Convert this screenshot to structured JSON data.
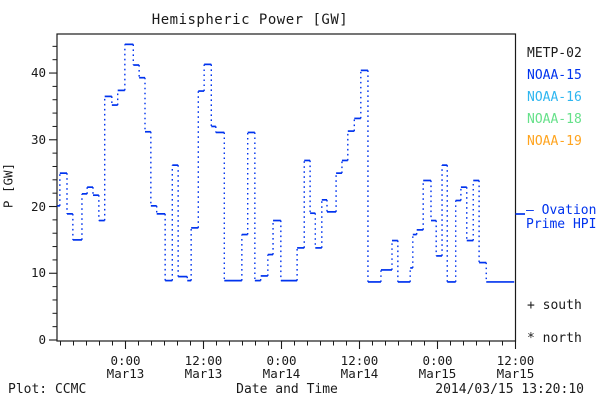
{
  "title": "Hemispheric Power [GW]",
  "axes": {
    "ylabel": "P [GW]",
    "xlabel": "Date and Time",
    "y_ticks": [
      0,
      10,
      20,
      30,
      40
    ],
    "y_minor_step": 2,
    "ylim": [
      0,
      46
    ],
    "x_major_ticks": [
      {
        "t": 0,
        "time": "0:00",
        "date": "Mar13"
      },
      {
        "t": 12,
        "time": "12:00",
        "date": "Mar13"
      },
      {
        "t": 24,
        "time": "0:00",
        "date": "Mar14"
      },
      {
        "t": 36,
        "time": "12:00",
        "date": "Mar14"
      },
      {
        "t": 48,
        "time": "0:00",
        "date": "Mar15"
      },
      {
        "t": 60,
        "time": "12:00",
        "date": "Mar15"
      }
    ],
    "x_minor_step_hours": 2,
    "xlim_hours": [
      -10.5,
      59.8
    ]
  },
  "legend": {
    "satellites": [
      {
        "label": "METP-02",
        "color": "#1a1a1a"
      },
      {
        "label": "NOAA-15",
        "color": "#0033ee"
      },
      {
        "label": "NOAA-16",
        "color": "#2eb6f0"
      },
      {
        "label": "NOAA-18",
        "color": "#66e18a"
      },
      {
        "label": "NOAA-19",
        "color": "#ffa41f"
      }
    ],
    "model_line_label_1": "— Ovation",
    "model_line_label_2": "Prime HPI",
    "model_color": "#0033ee",
    "south_marker": "+ south",
    "north_marker": "* north"
  },
  "footer": {
    "left": "Plot: CCMC",
    "right": "2014/03/15 13:20:10"
  },
  "chart_data": {
    "type": "line",
    "style": "step",
    "title": "Hemispheric Power [GW]",
    "xlabel": "Date and Time",
    "ylabel": "P [GW]",
    "ylim": [
      0,
      46
    ],
    "grid": false,
    "legend_position": "right-outside",
    "series_name": "Ovation Prime HPI (NOAA-15)",
    "units": "GW",
    "x_unit": "hours since 2014-03-13 00:00 UT",
    "line_color": "#0033ee",
    "x_end": 59.8,
    "steps": [
      [
        -10.5,
        20.1
      ],
      [
        -10.1,
        25.0
      ],
      [
        -9.0,
        18.9
      ],
      [
        -8.1,
        15.0
      ],
      [
        -6.7,
        21.9
      ],
      [
        -5.9,
        22.9
      ],
      [
        -5.0,
        21.7
      ],
      [
        -4.1,
        17.9
      ],
      [
        -3.2,
        36.5
      ],
      [
        -2.1,
        35.2
      ],
      [
        -1.2,
        37.4
      ],
      [
        -0.1,
        44.3
      ],
      [
        1.2,
        41.2
      ],
      [
        2.1,
        39.3
      ],
      [
        3.0,
        31.2
      ],
      [
        3.9,
        20.1
      ],
      [
        4.8,
        18.9
      ],
      [
        6.1,
        8.9
      ],
      [
        7.2,
        26.2
      ],
      [
        8.1,
        9.5
      ],
      [
        9.5,
        8.9
      ],
      [
        10.1,
        16.8
      ],
      [
        11.2,
        37.3
      ],
      [
        12.1,
        41.3
      ],
      [
        13.2,
        32.0
      ],
      [
        13.9,
        31.1
      ],
      [
        15.2,
        8.9
      ],
      [
        17.9,
        15.8
      ],
      [
        18.8,
        31.1
      ],
      [
        19.9,
        8.9
      ],
      [
        20.8,
        9.6
      ],
      [
        21.9,
        12.8
      ],
      [
        22.7,
        17.9
      ],
      [
        23.9,
        8.9
      ],
      [
        26.4,
        13.8
      ],
      [
        27.5,
        26.9
      ],
      [
        28.4,
        19.0
      ],
      [
        29.2,
        13.8
      ],
      [
        30.2,
        21.0
      ],
      [
        31.0,
        19.2
      ],
      [
        32.4,
        25.0
      ],
      [
        33.3,
        26.9
      ],
      [
        34.2,
        31.3
      ],
      [
        35.2,
        33.2
      ],
      [
        36.2,
        40.4
      ],
      [
        37.3,
        8.7
      ],
      [
        39.3,
        10.5
      ],
      [
        41.0,
        14.9
      ],
      [
        41.9,
        8.7
      ],
      [
        43.8,
        10.8
      ],
      [
        44.2,
        15.8
      ],
      [
        44.8,
        16.5
      ],
      [
        45.8,
        23.9
      ],
      [
        47.0,
        17.9
      ],
      [
        47.8,
        12.6
      ],
      [
        48.7,
        26.2
      ],
      [
        49.5,
        8.7
      ],
      [
        50.8,
        20.9
      ],
      [
        51.6,
        22.9
      ],
      [
        52.5,
        14.9
      ],
      [
        53.5,
        23.9
      ],
      [
        54.4,
        11.6
      ],
      [
        55.5,
        8.7
      ]
    ]
  }
}
